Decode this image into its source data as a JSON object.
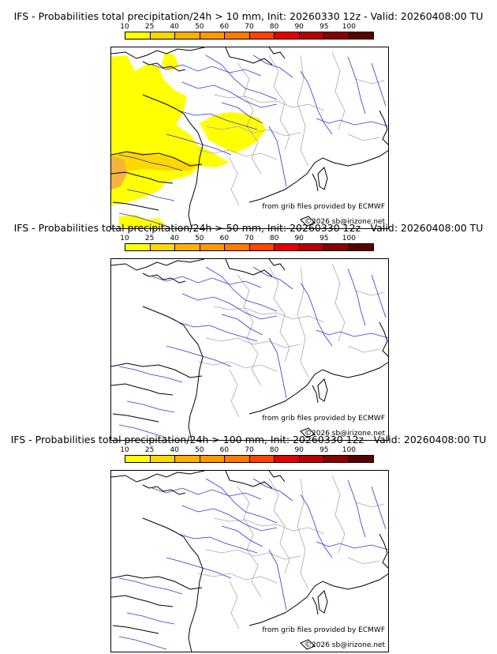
{
  "colorbar": {
    "ticks": [
      "10",
      "25",
      "40",
      "50",
      "60",
      "70",
      "80",
      "90",
      "95",
      "100"
    ],
    "colors": [
      "#ffff00",
      "#ffd700",
      "#ffb000",
      "#ff9900",
      "#ff7a00",
      "#ff4500",
      "#e60000",
      "#b80000",
      "#8b0000",
      "#5a0000"
    ]
  },
  "panels": [
    {
      "title": "IFS - Probabilities total precipitation/24h > 10 mm, Init: 20260330 12z - Valid: 20260408:00 TU",
      "credit_line1": "from grib files provided by ECMWF",
      "credit_line2": "©2026 sb@irizone.net",
      "has_precip": true
    },
    {
      "title": "IFS - Probabilities total precipitation/24h > 50 mm, Init: 20260330 12z - Valid: 20260408:00 TU",
      "credit_line1": "from grib files provided by ECMWF",
      "credit_line2": "©2026 sb@irizone.net",
      "has_precip": false
    },
    {
      "title": "IFS - Probabilities total precipitation/24h > 100 mm, Init: 20260330 12z - Valid: 20260408:00 TU",
      "credit_line1": "from grib files provided by ECMWF",
      "credit_line2": "©2026 sb@irizone.net",
      "has_precip": false
    }
  ],
  "colors": {
    "coast": "#000000",
    "rivers": "#3333dd",
    "borders": "#a8a8a8",
    "precip_low": "#ffff00",
    "precip_mid": "#ffd700",
    "precip_high": "#f5b23c"
  }
}
